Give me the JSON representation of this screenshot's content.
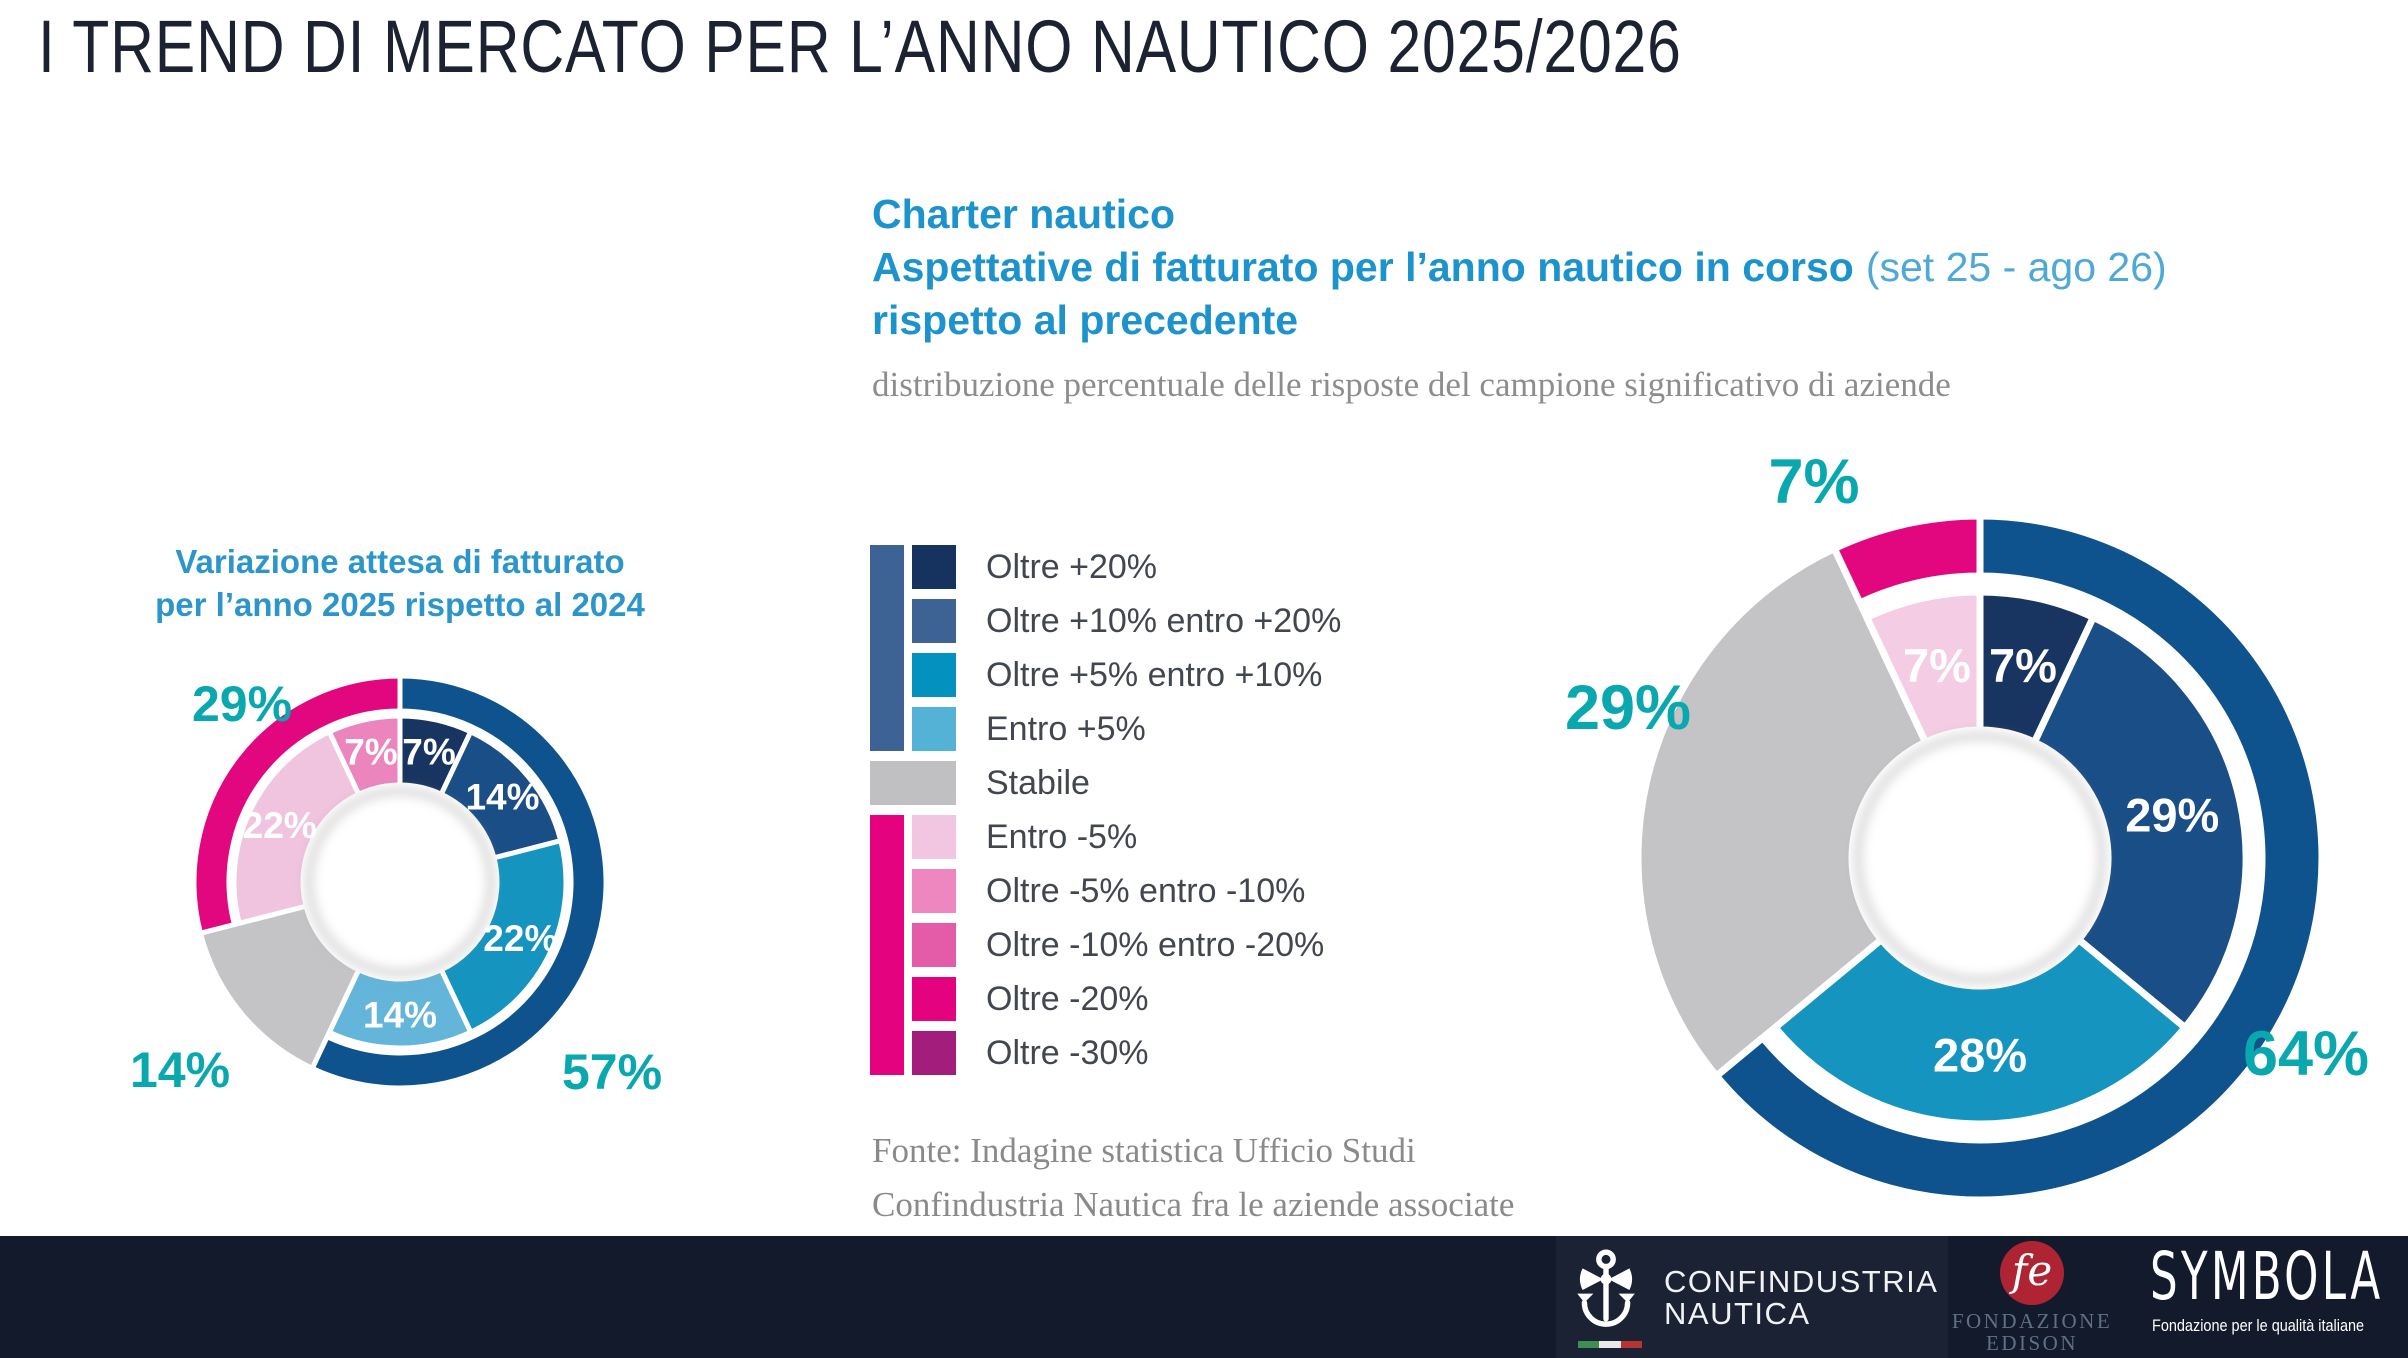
{
  "page": {
    "title": "I TREND DI MERCATO PER L’ANNO NAUTICO 2025/2026"
  },
  "heading": {
    "line1": "Charter nautico",
    "line2_bold": "Aspettative di fatturato per l’anno nautico in corso",
    "line2_light": "(set 25 - ago 26)",
    "line3": "rispetto al precedente",
    "description": "distribuzione percentuale delle risposte del campione significativo di aziende",
    "accent_color": "#1C93CD"
  },
  "legend": {
    "positive_bar_color": "#3D6395",
    "negative_bar_color": "#E5027E",
    "items": [
      {
        "label": "Oltre +20%",
        "color": "#16335F",
        "group": "positive"
      },
      {
        "label": "Oltre +10% entro +20%",
        "color": "#3D6395",
        "group": "positive"
      },
      {
        "label": "Oltre +5% entro +10%",
        "color": "#0392BF",
        "group": "positive"
      },
      {
        "label": "Entro +5%",
        "color": "#55B2D7",
        "group": "positive"
      },
      {
        "label": "Stabile",
        "color": "#C0C0C2",
        "group": "stable"
      },
      {
        "label": "Entro -5%",
        "color": "#F2C5E0",
        "group": "negative"
      },
      {
        "label": "Oltre -5% entro -10%",
        "color": "#EE86BF",
        "group": "negative"
      },
      {
        "label": "Oltre -10% entro -20%",
        "color": "#E45CA7",
        "group": "negative"
      },
      {
        "label": "Oltre -20%",
        "color": "#E5027E",
        "group": "negative"
      },
      {
        "label": "Oltre -30%",
        "color": "#A21D7C",
        "group": "negative"
      }
    ]
  },
  "source": {
    "line1": "Fonte: Indagine statistica Ufficio Studi",
    "line2": "Confindustria Nautica fra le aziende associate"
  },
  "footer": {
    "confindustria": {
      "line1": "CONFINDUSTRIA",
      "line2": "NAUTICA"
    },
    "edison": {
      "monogram": "fe",
      "line1": "FONDAZIONE",
      "line2": "EDISON"
    },
    "symbola": {
      "wordmark": "SYMBOLA",
      "tagline": "Fondazione per le qualità italiane"
    }
  },
  "chart_data": [
    {
      "type": "donut",
      "title": "Variazione attesa di fatturato per l’anno 2025 rispetto al 2024",
      "title_lines": [
        "Variazione attesa di fatturato",
        "per l’anno 2025 rispetto al 2024"
      ],
      "unit": "%",
      "legend_position": "center-shared",
      "label_color_inside": "#FFFFFF",
      "label_color_outside": "#09A7AE",
      "segments": [
        {
          "category": "Oltre +20%",
          "value": 7,
          "color": "#173560",
          "label_inside": "7%",
          "show_label": true
        },
        {
          "category": "Oltre +10% entro +20%",
          "value": 14,
          "color": "#1A4E87",
          "label_inside": "14%",
          "show_label": true
        },
        {
          "category": "Oltre +5% entro +10%",
          "value": 22,
          "color": "#1494BF",
          "label_inside": "22%",
          "show_label": true
        },
        {
          "category": "Entro +5%",
          "value": 14,
          "color": "#63B5D9",
          "label_inside": "14%",
          "show_label": true
        },
        {
          "category": "Stabile",
          "value": 14,
          "color": "#C4C4C6",
          "label_inside": "",
          "show_label": false,
          "full_thickness": true
        },
        {
          "category": "Entro -5%",
          "value": 22,
          "color": "#F0C3DE",
          "label_inside": "22%",
          "show_label": true
        },
        {
          "category": "Oltre -5% entro -10%",
          "value": 7,
          "color": "#EC85BE",
          "label_inside": "7%",
          "show_label": true
        }
      ],
      "groups": [
        {
          "name": "positive",
          "value": 57,
          "label": "57%",
          "color": "#0F538E"
        },
        {
          "name": "stable",
          "value": 14,
          "label": "14%",
          "color": "#C4C4C6",
          "skip_arc": true
        },
        {
          "name": "negative",
          "value": 29,
          "label": "29%",
          "color": "#E2077F"
        }
      ]
    },
    {
      "type": "donut",
      "title": "Charter nautico — Aspettative di fatturato per l’anno nautico in corso (set 25 - ago 26) rispetto al precedente",
      "title_lines": [],
      "unit": "%",
      "legend_position": "center-shared",
      "label_color_inside": "#FFFFFF",
      "label_color_outside": "#09A7AE",
      "segments": [
        {
          "category": "Oltre +20%",
          "value": 7,
          "color": "#173560",
          "label_inside": "7%",
          "show_label": true
        },
        {
          "category": "Oltre +10% entro +20%",
          "value": 29,
          "color": "#1A4E87",
          "label_inside": "29%",
          "show_label": true
        },
        {
          "category": "Oltre +5% entro +10%",
          "value": 28,
          "color": "#1494BF",
          "label_inside": "28%",
          "show_label": true
        },
        {
          "category": "Stabile",
          "value": 29,
          "color": "#C4C4C6",
          "label_inside": "",
          "show_label": false,
          "full_thickness": true
        },
        {
          "category": "Entro -5%",
          "value": 7,
          "color": "#F4CCE3",
          "label_inside": "7%",
          "show_label": true
        }
      ],
      "groups": [
        {
          "name": "positive",
          "value": 64,
          "label": "64%",
          "color": "#0F538E"
        },
        {
          "name": "stable",
          "value": 29,
          "label": "29%",
          "color": "#C4C4C6",
          "skip_arc": true
        },
        {
          "name": "negative",
          "value": 7,
          "label": "7%",
          "color": "#E2077F"
        }
      ]
    }
  ]
}
